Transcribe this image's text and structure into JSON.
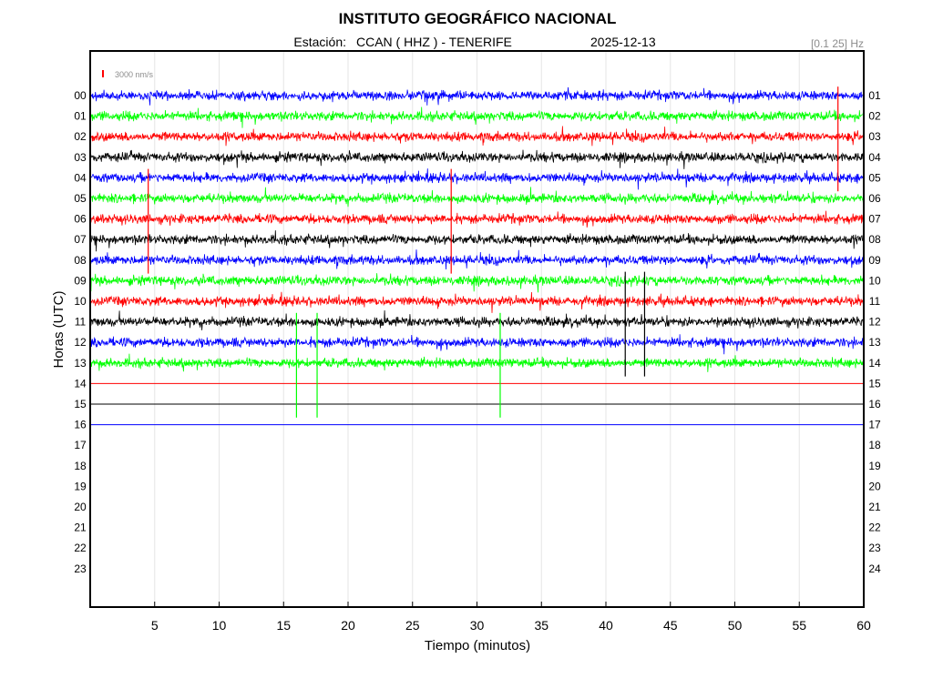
{
  "header": {
    "title": "INSTITUTO GEOGRÁFICO NACIONAL",
    "station_prefix": "Estación:",
    "station": "CCAN ( HHZ ) - TENERIFE",
    "date": "2025-12-13",
    "band": "[0.1 25] Hz"
  },
  "scale": {
    "label": "3000 nm/s",
    "color": "#ff0000"
  },
  "chart_data": {
    "type": "line",
    "title": "INSTITUTO GEOGRÁFICO NACIONAL",
    "xlabel": "Tiempo (minutos)",
    "ylabel": "Horas (UTC)",
    "xlim": [
      0,
      60
    ],
    "x_ticks": [
      5,
      10,
      15,
      20,
      25,
      30,
      35,
      40,
      45,
      50,
      55,
      60
    ],
    "grid": true,
    "left_hour_labels": [
      "00",
      "01",
      "02",
      "03",
      "04",
      "05",
      "06",
      "07",
      "08",
      "09",
      "10",
      "11",
      "12",
      "13",
      "14",
      "15",
      "16",
      "17",
      "18",
      "19",
      "20",
      "21",
      "22",
      "23"
    ],
    "right_hour_labels": [
      "01",
      "02",
      "03",
      "04",
      "05",
      "06",
      "07",
      "08",
      "09",
      "10",
      "11",
      "12",
      "13",
      "14",
      "15",
      "16",
      "17",
      "18",
      "19",
      "20",
      "21",
      "22",
      "23",
      "24"
    ],
    "trace_colors": [
      "#0000ff",
      "#00ff00",
      "#ff0000",
      "#000000"
    ],
    "recorded_rows": 17,
    "noisy_rows": 14,
    "data_end_minute": 60,
    "series": [
      {
        "hour": "00",
        "color": "#0000ff"
      },
      {
        "hour": "01",
        "color": "#00ff00"
      },
      {
        "hour": "02",
        "color": "#ff0000"
      },
      {
        "hour": "03",
        "color": "#000000"
      },
      {
        "hour": "04",
        "color": "#0000ff"
      },
      {
        "hour": "05",
        "color": "#00ff00"
      },
      {
        "hour": "06",
        "color": "#ff0000"
      },
      {
        "hour": "07",
        "color": "#000000"
      },
      {
        "hour": "08",
        "color": "#0000ff"
      },
      {
        "hour": "09",
        "color": "#00ff00"
      },
      {
        "hour": "10",
        "color": "#ff0000"
      },
      {
        "hour": "11",
        "color": "#000000"
      },
      {
        "hour": "12",
        "color": "#0000ff"
      },
      {
        "hour": "13",
        "color": "#00ff00"
      },
      {
        "hour": "14",
        "color": "#ff0000"
      },
      {
        "hour": "15",
        "color": "#000000"
      },
      {
        "hour": "16",
        "color": "#0000ff"
      }
    ],
    "spikes": [
      {
        "hour": "13",
        "minute": 16.0
      },
      {
        "hour": "13",
        "minute": 17.6
      },
      {
        "hour": "13",
        "minute": 31.8
      },
      {
        "hour": "11",
        "minute": 41.5
      },
      {
        "hour": "11",
        "minute": 43.0
      },
      {
        "hour": "06",
        "minute": 4.5
      },
      {
        "hour": "06",
        "minute": 28.0
      },
      {
        "hour": "02",
        "minute": 58.0
      }
    ]
  }
}
